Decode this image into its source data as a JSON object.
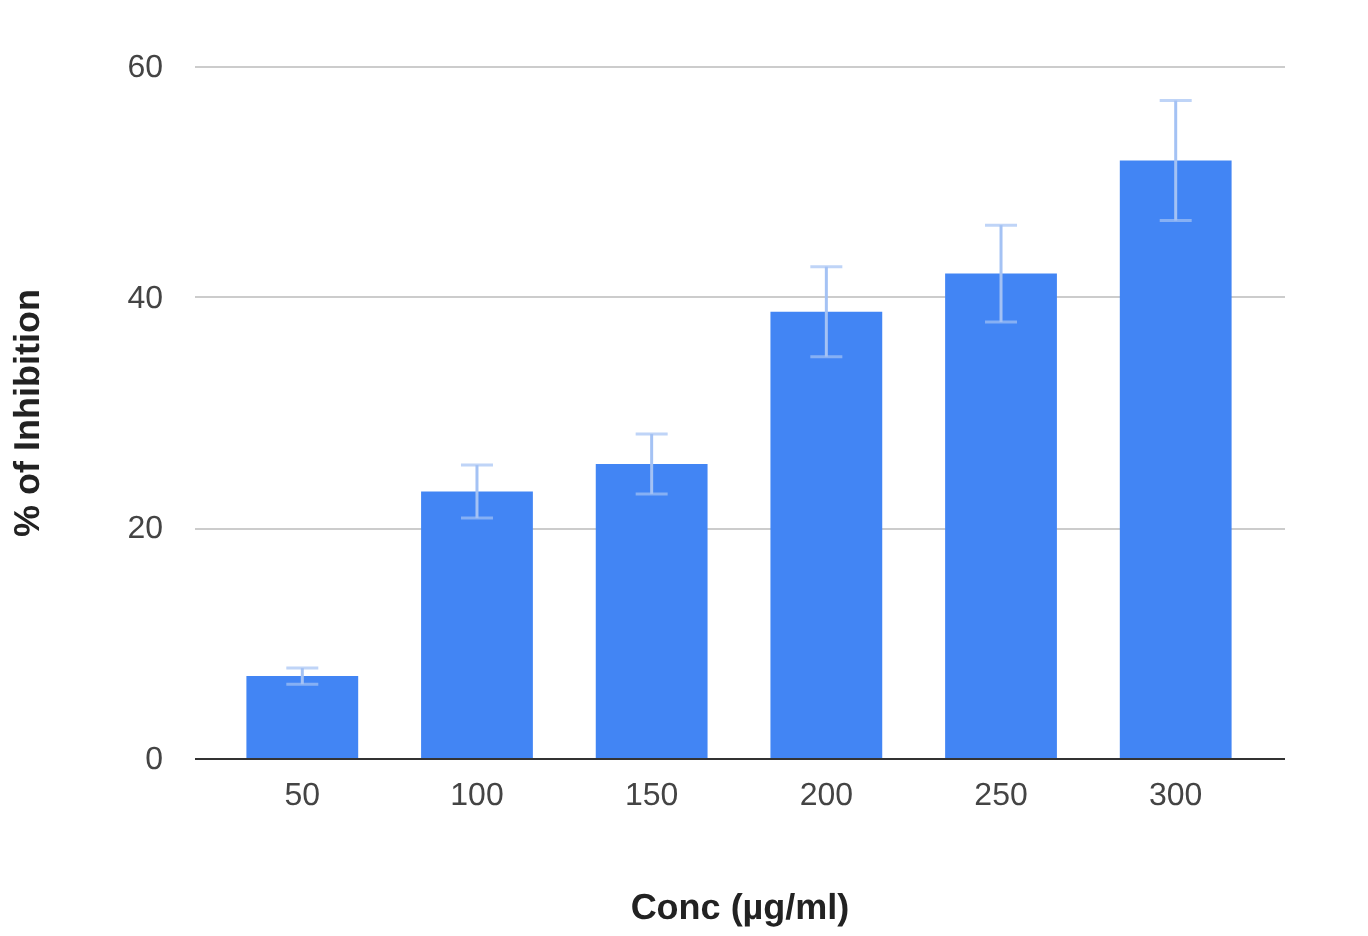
{
  "chart_data": {
    "type": "bar",
    "xlabel": "Conc (µg/ml)",
    "ylabel": "% of Inhibition",
    "categories": [
      "50",
      "100",
      "150",
      "200",
      "250",
      "300"
    ],
    "values": [
      7.1,
      23.1,
      25.5,
      38.7,
      42.0,
      51.8
    ],
    "errors": [
      0.7,
      2.3,
      2.6,
      3.9,
      4.2,
      5.2
    ],
    "color": "#4285f4",
    "ylim": [
      0,
      60
    ],
    "yticks": [
      0,
      20,
      40,
      60
    ],
    "grid": "y"
  }
}
